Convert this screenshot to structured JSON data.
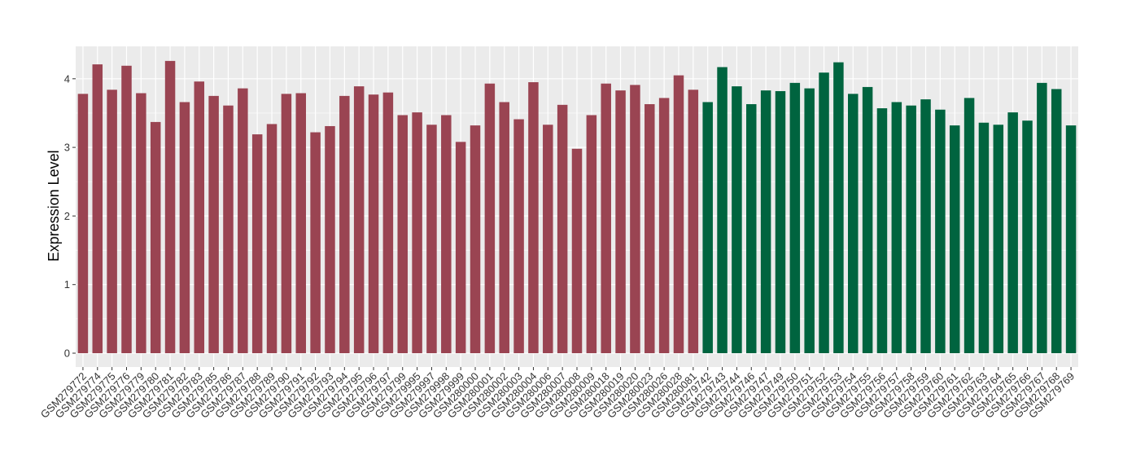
{
  "chart_data": {
    "type": "bar",
    "title": "",
    "xlabel": "",
    "ylabel": "Expression Level",
    "ylim": [
      0,
      4.45
    ],
    "yticks": [
      0,
      1,
      2,
      3,
      4
    ],
    "grid": true,
    "legend": "none",
    "colors": {
      "group_a": "#9A4452",
      "group_b": "#00643F",
      "panel_bg": "#EBEBEB",
      "grid": "#FFFFFF"
    },
    "categories": [
      "GSM279772",
      "GSM279774",
      "GSM279775",
      "GSM279776",
      "GSM279779",
      "GSM279780",
      "GSM279781",
      "GSM279782",
      "GSM279783",
      "GSM279785",
      "GSM279786",
      "GSM279787",
      "GSM279788",
      "GSM279789",
      "GSM279790",
      "GSM279791",
      "GSM279792",
      "GSM279793",
      "GSM279794",
      "GSM279795",
      "GSM279796",
      "GSM279797",
      "GSM279799",
      "GSM279995",
      "GSM279997",
      "GSM279998",
      "GSM279999",
      "GSM280000",
      "GSM280001",
      "GSM280002",
      "GSM280003",
      "GSM280004",
      "GSM280006",
      "GSM280007",
      "GSM280008",
      "GSM280009",
      "GSM280018",
      "GSM280019",
      "GSM280020",
      "GSM280023",
      "GSM280026",
      "GSM280028",
      "GSM280081",
      "GSM279742",
      "GSM279743",
      "GSM279744",
      "GSM279746",
      "GSM279747",
      "GSM279749",
      "GSM279750",
      "GSM279751",
      "GSM279752",
      "GSM279753",
      "GSM279754",
      "GSM279755",
      "GSM279756",
      "GSM279757",
      "GSM279758",
      "GSM279759",
      "GSM279760",
      "GSM279761",
      "GSM279762",
      "GSM279763",
      "GSM279764",
      "GSM279765",
      "GSM279766",
      "GSM279767",
      "GSM279768",
      "GSM279769"
    ],
    "values": [
      3.78,
      4.21,
      3.84,
      4.19,
      3.79,
      3.37,
      4.26,
      3.66,
      3.96,
      3.75,
      3.61,
      3.86,
      3.19,
      3.34,
      3.78,
      3.79,
      3.22,
      3.31,
      3.75,
      3.89,
      3.77,
      3.8,
      3.47,
      3.51,
      3.33,
      3.47,
      3.08,
      3.32,
      3.93,
      3.66,
      3.41,
      3.95,
      3.33,
      3.62,
      2.98,
      3.47,
      3.93,
      3.83,
      3.91,
      3.63,
      3.72,
      4.05,
      3.84,
      3.66,
      4.17,
      3.89,
      3.63,
      3.83,
      3.82,
      3.94,
      3.86,
      4.09,
      4.24,
      3.78,
      3.88,
      3.57,
      3.66,
      3.61,
      3.7,
      3.55,
      3.32,
      3.72,
      3.36,
      3.33,
      3.51,
      3.39,
      3.94,
      3.85,
      3.32
    ],
    "groups": [
      "a",
      "a",
      "a",
      "a",
      "a",
      "a",
      "a",
      "a",
      "a",
      "a",
      "a",
      "a",
      "a",
      "a",
      "a",
      "a",
      "a",
      "a",
      "a",
      "a",
      "a",
      "a",
      "a",
      "a",
      "a",
      "a",
      "a",
      "a",
      "a",
      "a",
      "a",
      "a",
      "a",
      "a",
      "a",
      "a",
      "a",
      "a",
      "a",
      "a",
      "a",
      "a",
      "a",
      "b",
      "b",
      "b",
      "b",
      "b",
      "b",
      "b",
      "b",
      "b",
      "b",
      "b",
      "b",
      "b",
      "b",
      "b",
      "b",
      "b",
      "b",
      "b",
      "b",
      "b",
      "b",
      "b",
      "b",
      "b",
      "b"
    ]
  }
}
